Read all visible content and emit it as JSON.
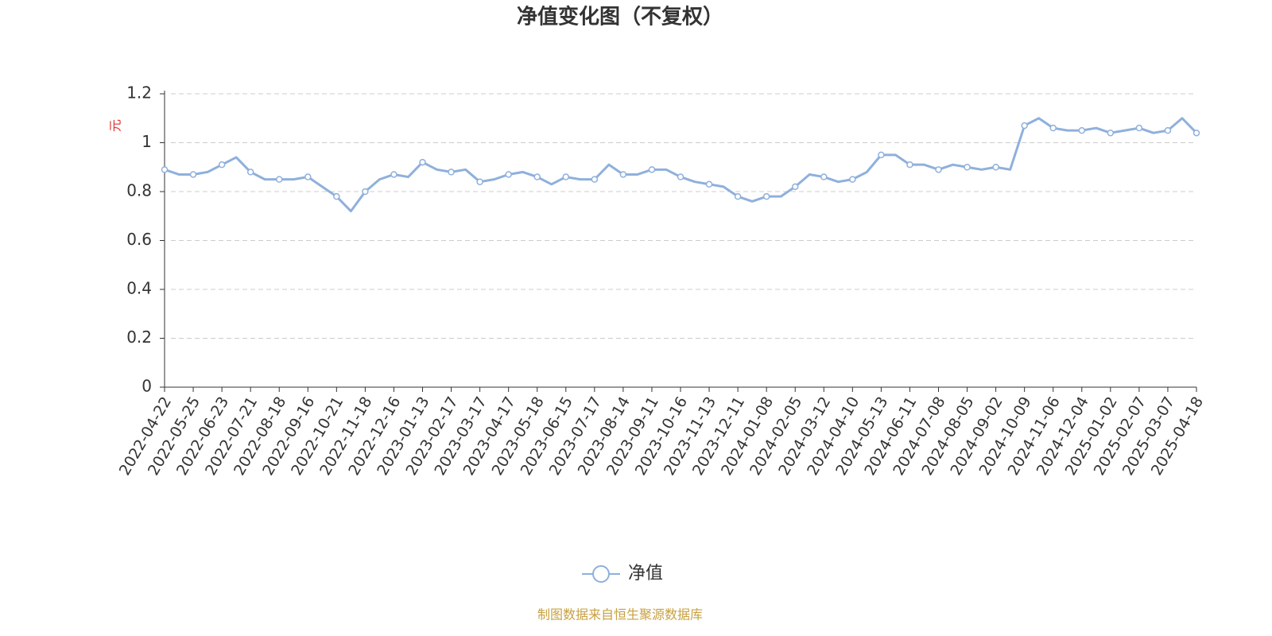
{
  "chart_data": {
    "type": "line",
    "title": "净值变化图（不复权）",
    "y_axis_label": "元",
    "categories": [
      "2022-04-22",
      null,
      "2022-05-25",
      null,
      "2022-06-23",
      null,
      "2022-07-21",
      null,
      "2022-08-18",
      null,
      "2022-09-16",
      null,
      "2022-10-21",
      null,
      "2022-11-18",
      null,
      "2022-12-16",
      null,
      "2023-01-13",
      null,
      "2023-02-17",
      null,
      "2023-03-17",
      null,
      "2023-04-17",
      null,
      "2023-05-18",
      null,
      "2023-06-15",
      null,
      "2023-07-17",
      null,
      "2023-08-14",
      null,
      "2023-09-11",
      null,
      "2023-10-16",
      null,
      "2023-11-13",
      null,
      "2023-12-11",
      null,
      "2024-01-08",
      null,
      "2024-02-05",
      null,
      "2024-03-12",
      null,
      "2024-04-10",
      null,
      "2024-05-13",
      null,
      "2024-06-11",
      null,
      "2024-07-08",
      null,
      "2024-08-05",
      null,
      "2024-09-02",
      null,
      "2024-10-09",
      null,
      "2024-11-06",
      null,
      "2024-12-04",
      null,
      "2025-01-02",
      null,
      "2025-02-07",
      null,
      "2025-03-07",
      null,
      "2025-04-18"
    ],
    "series": [
      {
        "name": "净值",
        "color": "#8fb0dc",
        "values": [
          0.89,
          0.87,
          0.87,
          0.88,
          0.91,
          0.94,
          0.88,
          0.85,
          0.85,
          0.85,
          0.86,
          0.82,
          0.78,
          0.72,
          0.8,
          0.85,
          0.87,
          0.86,
          0.92,
          0.89,
          0.88,
          0.89,
          0.84,
          0.85,
          0.87,
          0.88,
          0.86,
          0.83,
          0.86,
          0.85,
          0.85,
          0.91,
          0.87,
          0.87,
          0.89,
          0.89,
          0.86,
          0.84,
          0.83,
          0.82,
          0.78,
          0.76,
          0.78,
          0.78,
          0.82,
          0.87,
          0.86,
          0.84,
          0.85,
          0.88,
          0.95,
          0.95,
          0.91,
          0.91,
          0.89,
          0.91,
          0.9,
          0.89,
          0.9,
          0.89,
          1.07,
          1.1,
          1.06,
          1.05,
          1.05,
          1.06,
          1.04,
          1.05,
          1.06,
          1.04,
          1.05,
          1.1,
          1.04
        ]
      }
    ],
    "ylim": [
      0,
      1.2
    ],
    "yticks": [
      0,
      0.2,
      0.4,
      0.6,
      0.8,
      1,
      1.2
    ],
    "grid": true,
    "legend": "bottom",
    "source": "制图数据来自恒生聚源数据库"
  }
}
